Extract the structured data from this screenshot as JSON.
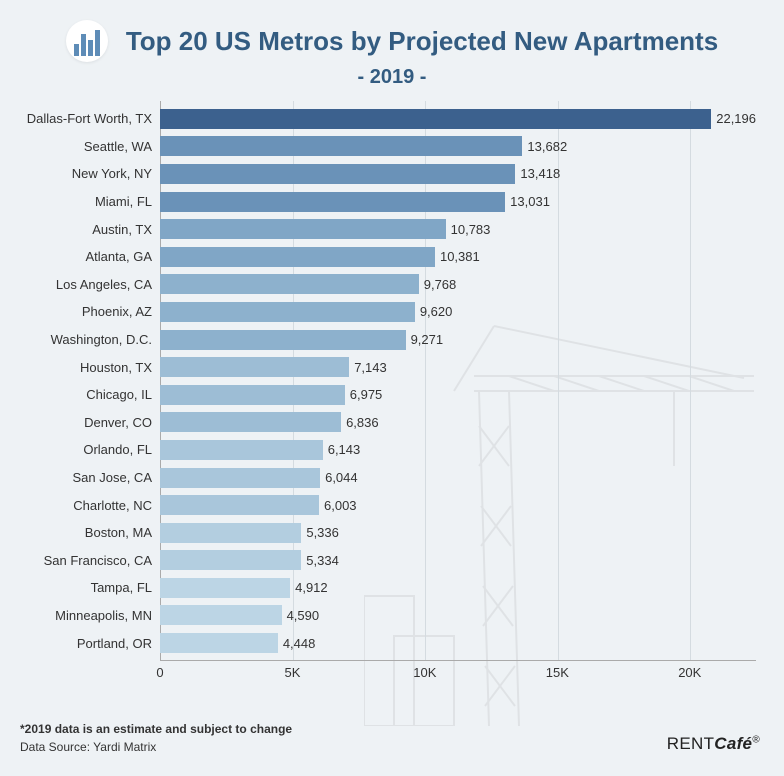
{
  "header": {
    "title": "Top 20 US Metros by Projected New Apartments",
    "subtitle": "- 2019 -"
  },
  "chart": {
    "type": "bar",
    "orientation": "horizontal",
    "xmax": 22500,
    "xticks": [
      {
        "pos": 0,
        "label": "0"
      },
      {
        "pos": 5000,
        "label": "5K"
      },
      {
        "pos": 10000,
        "label": "10K"
      },
      {
        "pos": 15000,
        "label": "15K"
      },
      {
        "pos": 20000,
        "label": "20K"
      }
    ],
    "grid_color": "#d4dbe0",
    "axis_color": "#aaaaaa",
    "label_fontsize": 13,
    "items": [
      {
        "label": "Dallas-Fort Worth, TX",
        "value": 22196,
        "value_text": "22,196",
        "color": "#3c618e"
      },
      {
        "label": "Seattle, WA",
        "value": 13682,
        "value_text": "13,682",
        "color": "#6a92b8"
      },
      {
        "label": "New York, NY",
        "value": 13418,
        "value_text": "13,418",
        "color": "#6a92b8"
      },
      {
        "label": "Miami, FL",
        "value": 13031,
        "value_text": "13,031",
        "color": "#6a92b8"
      },
      {
        "label": "Austin, TX",
        "value": 10783,
        "value_text": "10,783",
        "color": "#80a6c6"
      },
      {
        "label": "Atlanta, GA",
        "value": 10381,
        "value_text": "10,381",
        "color": "#80a6c6"
      },
      {
        "label": "Los Angeles, CA",
        "value": 9768,
        "value_text": "9,768",
        "color": "#8db1cd"
      },
      {
        "label": "Phoenix, AZ",
        "value": 9620,
        "value_text": "9,620",
        "color": "#8db1cd"
      },
      {
        "label": "Washington, D.C.",
        "value": 9271,
        "value_text": "9,271",
        "color": "#8db1cd"
      },
      {
        "label": "Houston, TX",
        "value": 7143,
        "value_text": "7,143",
        "color": "#9dbdd5"
      },
      {
        "label": "Chicago, IL",
        "value": 6975,
        "value_text": "6,975",
        "color": "#9dbdd5"
      },
      {
        "label": "Denver, CO",
        "value": 6836,
        "value_text": "6,836",
        "color": "#9dbdd5"
      },
      {
        "label": "Orlando, FL",
        "value": 6143,
        "value_text": "6,143",
        "color": "#a9c6db"
      },
      {
        "label": "San Jose, CA",
        "value": 6044,
        "value_text": "6,044",
        "color": "#a9c6db"
      },
      {
        "label": "Charlotte, NC",
        "value": 6003,
        "value_text": "6,003",
        "color": "#a9c6db"
      },
      {
        "label": "Boston, MA",
        "value": 5336,
        "value_text": "5,336",
        "color": "#b3cee0"
      },
      {
        "label": "San Francisco, CA",
        "value": 5334,
        "value_text": "5,334",
        "color": "#b3cee0"
      },
      {
        "label": "Tampa, FL",
        "value": 4912,
        "value_text": "4,912",
        "color": "#bcd5e5"
      },
      {
        "label": "Minneapolis, MN",
        "value": 4590,
        "value_text": "4,590",
        "color": "#bcd5e5"
      },
      {
        "label": "Portland, OR",
        "value": 4448,
        "value_text": "4,448",
        "color": "#bcd5e5"
      }
    ]
  },
  "footer": {
    "note": "*2019 data is an estimate and subject to change",
    "source": "Data Source: Yardi Matrix"
  },
  "brand": {
    "name": "RENTCafé",
    "mark": "®"
  },
  "colors": {
    "background": "#eef2f5",
    "title": "#335c81",
    "text": "#333333"
  }
}
